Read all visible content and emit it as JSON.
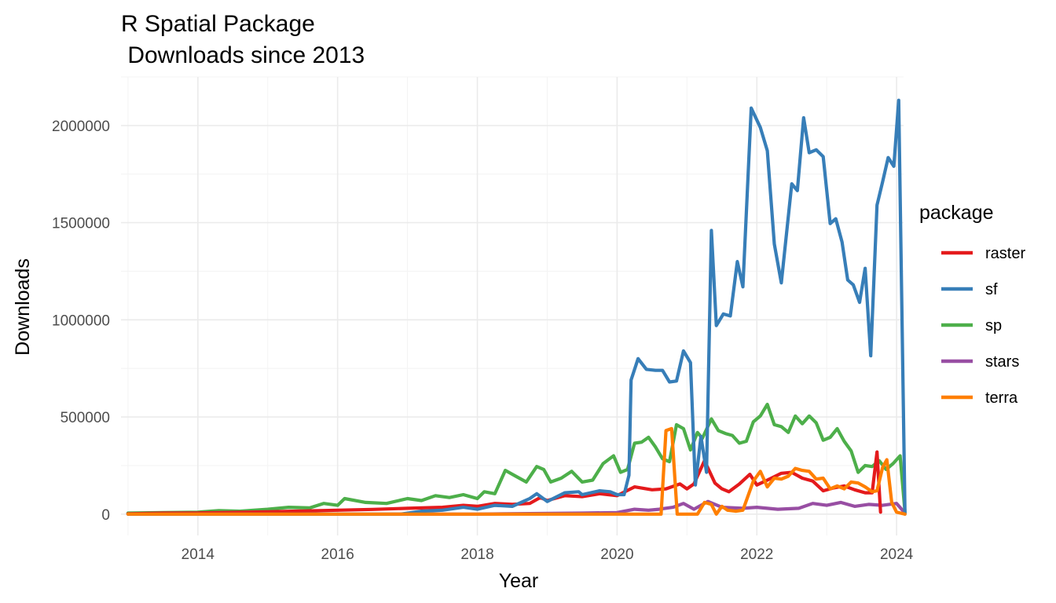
{
  "colors": {
    "raster": "#E41A1C",
    "sf": "#377EB8",
    "sp": "#4DAF4A",
    "stars": "#984EA3",
    "terra": "#FF7F00"
  },
  "chart_data": {
    "type": "line",
    "title_line1": "R Spatial Package",
    "title_line2": " Downloads since 2013",
    "xlabel": "Year",
    "ylabel": "Downloads",
    "xlim": [
      2012.9,
      2024.1
    ],
    "ylim": [
      -110000,
      2250000
    ],
    "x_ticks": [
      2014,
      2016,
      2018,
      2020,
      2022,
      2024
    ],
    "x_tick_labels": [
      "2014",
      "2016",
      "2018",
      "2020",
      "2022",
      "2024"
    ],
    "y_ticks": [
      0,
      500000,
      1000000,
      1500000,
      2000000
    ],
    "y_tick_labels": [
      "0",
      "500000",
      "1000000",
      "1500000",
      "2000000"
    ],
    "grid": true,
    "legend_title": "package",
    "legend_position": "right",
    "series": [
      {
        "name": "raster",
        "points": [
          [
            2013.0,
            2000
          ],
          [
            2013.5,
            5000
          ],
          [
            2014.0,
            6000
          ],
          [
            2014.5,
            9000
          ],
          [
            2015.0,
            12000
          ],
          [
            2015.5,
            16000
          ],
          [
            2016.0,
            20000
          ],
          [
            2016.5,
            24000
          ],
          [
            2017.0,
            30000
          ],
          [
            2017.5,
            35000
          ],
          [
            2017.8,
            45000
          ],
          [
            2018.0,
            40000
          ],
          [
            2018.25,
            55000
          ],
          [
            2018.5,
            50000
          ],
          [
            2018.75,
            55000
          ],
          [
            2018.9,
            85000
          ],
          [
            2019.0,
            70000
          ],
          [
            2019.25,
            95000
          ],
          [
            2019.5,
            90000
          ],
          [
            2019.75,
            105000
          ],
          [
            2020.0,
            95000
          ],
          [
            2020.25,
            140000
          ],
          [
            2020.5,
            125000
          ],
          [
            2020.7,
            130000
          ],
          [
            2020.9,
            155000
          ],
          [
            2021.0,
            130000
          ],
          [
            2021.1,
            155000
          ],
          [
            2021.25,
            275000
          ],
          [
            2021.4,
            160000
          ],
          [
            2021.5,
            130000
          ],
          [
            2021.6,
            115000
          ],
          [
            2021.75,
            155000
          ],
          [
            2021.9,
            205000
          ],
          [
            2022.0,
            150000
          ],
          [
            2022.15,
            175000
          ],
          [
            2022.35,
            210000
          ],
          [
            2022.5,
            215000
          ],
          [
            2022.65,
            185000
          ],
          [
            2022.8,
            170000
          ],
          [
            2022.95,
            120000
          ],
          [
            2023.1,
            135000
          ],
          [
            2023.25,
            145000
          ],
          [
            2023.4,
            125000
          ],
          [
            2023.55,
            110000
          ],
          [
            2023.65,
            110000
          ],
          [
            2023.72,
            320000
          ],
          [
            2023.77,
            10000
          ]
        ]
      },
      {
        "name": "sf",
        "points": [
          [
            2013.0,
            0
          ],
          [
            2016.9,
            0
          ],
          [
            2017.2,
            15000
          ],
          [
            2017.5,
            20000
          ],
          [
            2017.8,
            35000
          ],
          [
            2018.0,
            25000
          ],
          [
            2018.25,
            45000
          ],
          [
            2018.5,
            40000
          ],
          [
            2018.75,
            80000
          ],
          [
            2018.85,
            105000
          ],
          [
            2019.0,
            65000
          ],
          [
            2019.25,
            110000
          ],
          [
            2019.45,
            115000
          ],
          [
            2019.5,
            100000
          ],
          [
            2019.75,
            120000
          ],
          [
            2019.9,
            115000
          ],
          [
            2020.0,
            100000
          ],
          [
            2020.1,
            100000
          ],
          [
            2020.17,
            200000
          ],
          [
            2020.2,
            690000
          ],
          [
            2020.3,
            800000
          ],
          [
            2020.42,
            745000
          ],
          [
            2020.55,
            740000
          ],
          [
            2020.65,
            740000
          ],
          [
            2020.75,
            680000
          ],
          [
            2020.85,
            685000
          ],
          [
            2020.95,
            840000
          ],
          [
            2021.05,
            780000
          ],
          [
            2021.12,
            150000
          ],
          [
            2021.2,
            400000
          ],
          [
            2021.28,
            215000
          ],
          [
            2021.35,
            1460000
          ],
          [
            2021.42,
            970000
          ],
          [
            2021.52,
            1030000
          ],
          [
            2021.62,
            1020000
          ],
          [
            2021.72,
            1300000
          ],
          [
            2021.8,
            1170000
          ],
          [
            2021.92,
            2090000
          ],
          [
            2022.05,
            1990000
          ],
          [
            2022.15,
            1870000
          ],
          [
            2022.25,
            1390000
          ],
          [
            2022.35,
            1190000
          ],
          [
            2022.5,
            1700000
          ],
          [
            2022.58,
            1665000
          ],
          [
            2022.67,
            2040000
          ],
          [
            2022.75,
            1860000
          ],
          [
            2022.85,
            1875000
          ],
          [
            2022.95,
            1840000
          ],
          [
            2023.05,
            1495000
          ],
          [
            2023.13,
            1520000
          ],
          [
            2023.22,
            1400000
          ],
          [
            2023.3,
            1205000
          ],
          [
            2023.38,
            1180000
          ],
          [
            2023.47,
            1090000
          ],
          [
            2023.55,
            1265000
          ],
          [
            2023.63,
            815000
          ],
          [
            2023.72,
            1590000
          ],
          [
            2023.8,
            1710000
          ],
          [
            2023.88,
            1835000
          ],
          [
            2023.96,
            1790000
          ],
          [
            2024.03,
            2130000
          ],
          [
            2024.12,
            0
          ]
        ]
      },
      {
        "name": "sp",
        "points": [
          [
            2013.0,
            5000
          ],
          [
            2013.5,
            8000
          ],
          [
            2014.0,
            10000
          ],
          [
            2014.3,
            18000
          ],
          [
            2014.6,
            15000
          ],
          [
            2015.0,
            25000
          ],
          [
            2015.3,
            35000
          ],
          [
            2015.6,
            32000
          ],
          [
            2015.8,
            55000
          ],
          [
            2016.0,
            45000
          ],
          [
            2016.1,
            80000
          ],
          [
            2016.4,
            60000
          ],
          [
            2016.7,
            55000
          ],
          [
            2017.0,
            80000
          ],
          [
            2017.2,
            70000
          ],
          [
            2017.4,
            95000
          ],
          [
            2017.6,
            85000
          ],
          [
            2017.8,
            100000
          ],
          [
            2018.0,
            80000
          ],
          [
            2018.1,
            115000
          ],
          [
            2018.25,
            105000
          ],
          [
            2018.4,
            225000
          ],
          [
            2018.55,
            195000
          ],
          [
            2018.7,
            165000
          ],
          [
            2018.85,
            245000
          ],
          [
            2018.95,
            230000
          ],
          [
            2019.05,
            165000
          ],
          [
            2019.2,
            185000
          ],
          [
            2019.35,
            220000
          ],
          [
            2019.5,
            165000
          ],
          [
            2019.65,
            175000
          ],
          [
            2019.8,
            260000
          ],
          [
            2019.95,
            300000
          ],
          [
            2020.05,
            215000
          ],
          [
            2020.15,
            230000
          ],
          [
            2020.25,
            365000
          ],
          [
            2020.35,
            370000
          ],
          [
            2020.45,
            395000
          ],
          [
            2020.55,
            345000
          ],
          [
            2020.65,
            285000
          ],
          [
            2020.75,
            270000
          ],
          [
            2020.85,
            460000
          ],
          [
            2020.95,
            440000
          ],
          [
            2021.05,
            330000
          ],
          [
            2021.15,
            420000
          ],
          [
            2021.22,
            390000
          ],
          [
            2021.35,
            490000
          ],
          [
            2021.45,
            430000
          ],
          [
            2021.55,
            415000
          ],
          [
            2021.65,
            405000
          ],
          [
            2021.75,
            365000
          ],
          [
            2021.85,
            375000
          ],
          [
            2021.95,
            475000
          ],
          [
            2022.05,
            505000
          ],
          [
            2022.15,
            565000
          ],
          [
            2022.25,
            460000
          ],
          [
            2022.35,
            450000
          ],
          [
            2022.45,
            420000
          ],
          [
            2022.55,
            505000
          ],
          [
            2022.65,
            465000
          ],
          [
            2022.75,
            505000
          ],
          [
            2022.85,
            470000
          ],
          [
            2022.95,
            380000
          ],
          [
            2023.05,
            395000
          ],
          [
            2023.15,
            440000
          ],
          [
            2023.25,
            375000
          ],
          [
            2023.35,
            325000
          ],
          [
            2023.45,
            215000
          ],
          [
            2023.55,
            250000
          ],
          [
            2023.65,
            245000
          ],
          [
            2023.75,
            275000
          ],
          [
            2023.85,
            230000
          ],
          [
            2023.95,
            260000
          ],
          [
            2024.05,
            300000
          ],
          [
            2024.12,
            10000
          ]
        ]
      },
      {
        "name": "stars",
        "points": [
          [
            2013.0,
            0
          ],
          [
            2018.0,
            0
          ],
          [
            2018.9,
            3000
          ],
          [
            2019.5,
            5000
          ],
          [
            2020.0,
            8000
          ],
          [
            2020.25,
            25000
          ],
          [
            2020.45,
            20000
          ],
          [
            2020.6,
            25000
          ],
          [
            2020.8,
            35000
          ],
          [
            2020.95,
            55000
          ],
          [
            2021.1,
            25000
          ],
          [
            2021.3,
            65000
          ],
          [
            2021.5,
            35000
          ],
          [
            2021.8,
            30000
          ],
          [
            2022.0,
            35000
          ],
          [
            2022.3,
            25000
          ],
          [
            2022.6,
            30000
          ],
          [
            2022.8,
            55000
          ],
          [
            2023.0,
            45000
          ],
          [
            2023.2,
            60000
          ],
          [
            2023.4,
            40000
          ],
          [
            2023.6,
            50000
          ],
          [
            2023.8,
            45000
          ],
          [
            2024.0,
            55000
          ],
          [
            2024.12,
            5000
          ]
        ]
      },
      {
        "name": "terra",
        "points": [
          [
            2013.0,
            0
          ],
          [
            2020.55,
            0
          ],
          [
            2020.63,
            0
          ],
          [
            2020.7,
            430000
          ],
          [
            2020.78,
            440000
          ],
          [
            2020.86,
            0
          ],
          [
            2020.95,
            0
          ],
          [
            2021.15,
            0
          ],
          [
            2021.25,
            60000
          ],
          [
            2021.35,
            50000
          ],
          [
            2021.42,
            0
          ],
          [
            2021.5,
            40000
          ],
          [
            2021.58,
            20000
          ],
          [
            2021.7,
            15000
          ],
          [
            2021.8,
            20000
          ],
          [
            2021.95,
            170000
          ],
          [
            2022.05,
            220000
          ],
          [
            2022.15,
            140000
          ],
          [
            2022.25,
            185000
          ],
          [
            2022.35,
            180000
          ],
          [
            2022.45,
            195000
          ],
          [
            2022.55,
            235000
          ],
          [
            2022.65,
            225000
          ],
          [
            2022.75,
            220000
          ],
          [
            2022.85,
            180000
          ],
          [
            2022.95,
            185000
          ],
          [
            2023.05,
            130000
          ],
          [
            2023.15,
            145000
          ],
          [
            2023.25,
            130000
          ],
          [
            2023.35,
            165000
          ],
          [
            2023.45,
            160000
          ],
          [
            2023.55,
            140000
          ],
          [
            2023.65,
            115000
          ],
          [
            2023.72,
            120000
          ],
          [
            2023.8,
            240000
          ],
          [
            2023.86,
            280000
          ],
          [
            2023.93,
            60000
          ],
          [
            2024.0,
            10000
          ],
          [
            2024.12,
            0
          ]
        ]
      }
    ]
  }
}
